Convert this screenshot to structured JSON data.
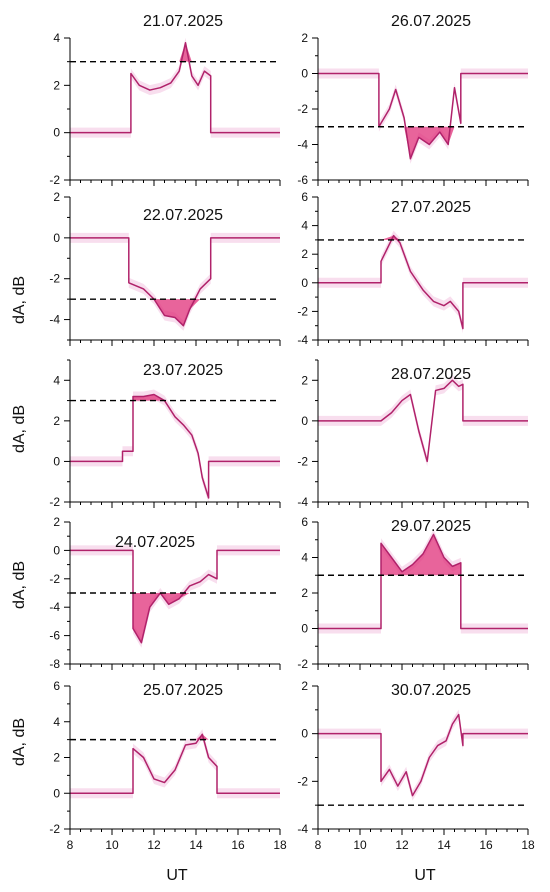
{
  "figure": {
    "ylabel": "dA, dB",
    "xlabel": "UT",
    "x_ticks": [
      "8",
      "10",
      "12",
      "14",
      "16",
      "18"
    ]
  },
  "colors": {
    "series": "#b0226a",
    "fill": "#e0307a",
    "envelope": "#f3c3e0",
    "threshold": "#000000"
  },
  "chart_data": [
    {
      "type": "line",
      "title": "21.07.2025",
      "xlim": [
        8,
        18
      ],
      "ylim": [
        -2,
        4
      ],
      "y_ticks": [
        "-2",
        "0",
        "2",
        "4"
      ],
      "threshold": 3,
      "fill_side": "above",
      "x": [
        8,
        10.9,
        10.9,
        11.3,
        11.8,
        12.3,
        12.8,
        13.2,
        13.5,
        13.8,
        14.1,
        14.4,
        14.7,
        14.7,
        18
      ],
      "y": [
        0,
        0,
        2.5,
        2.0,
        1.8,
        1.9,
        2.1,
        2.6,
        3.8,
        2.4,
        2.0,
        2.6,
        2.4,
        0,
        0
      ]
    },
    {
      "type": "line",
      "title": "26.07.2025",
      "xlim": [
        8,
        18
      ],
      "ylim": [
        -6,
        2
      ],
      "y_ticks": [
        "-6",
        "-4",
        "-2",
        "0",
        "2"
      ],
      "threshold": -3,
      "fill_side": "below",
      "x": [
        8,
        10.9,
        10.9,
        11.4,
        11.7,
        12.1,
        12.4,
        12.8,
        13.3,
        13.8,
        14.2,
        14.5,
        14.8,
        14.8,
        18
      ],
      "y": [
        0,
        0,
        -3.0,
        -2.0,
        -0.9,
        -2.5,
        -4.8,
        -3.6,
        -4.0,
        -3.3,
        -4.0,
        -0.8,
        -2.8,
        0,
        0
      ]
    },
    {
      "type": "line",
      "title": "22.07.2025",
      "xlim": [
        8,
        18
      ],
      "ylim": [
        -5,
        2
      ],
      "y_ticks": [
        "-4",
        "-2",
        "0",
        "2"
      ],
      "threshold": -3,
      "fill_side": "below",
      "x": [
        8,
        10.8,
        10.8,
        11.5,
        12.0,
        12.5,
        13.0,
        13.4,
        13.7,
        14.2,
        14.7,
        14.7,
        18
      ],
      "y": [
        0,
        0,
        -2.2,
        -2.5,
        -3.0,
        -3.8,
        -3.9,
        -4.3,
        -3.5,
        -2.5,
        -2.0,
        0,
        0
      ]
    },
    {
      "type": "line",
      "title": "27.07.2025",
      "xlim": [
        8,
        18
      ],
      "ylim": [
        -4,
        6
      ],
      "y_ticks": [
        "-4",
        "-2",
        "0",
        "2",
        "4",
        "6"
      ],
      "threshold": 3,
      "fill_side": "above",
      "x": [
        8,
        11.0,
        11.0,
        11.6,
        11.9,
        12.4,
        13.0,
        13.5,
        14.0,
        14.3,
        14.7,
        14.9,
        14.9,
        18
      ],
      "y": [
        0,
        0,
        1.5,
        3.3,
        2.8,
        0.8,
        -0.5,
        -1.3,
        -1.6,
        -1.3,
        -2.0,
        -3.2,
        0,
        0
      ]
    },
    {
      "type": "line",
      "title": "23.07.2025",
      "xlim": [
        8,
        18
      ],
      "ylim": [
        -2,
        5
      ],
      "y_ticks": [
        "-2",
        "0",
        "2",
        "4"
      ],
      "threshold": 3,
      "fill_side": "above",
      "x": [
        8,
        10.5,
        10.5,
        11.0,
        11.0,
        11.5,
        12.0,
        12.5,
        13.0,
        13.4,
        13.8,
        14.1,
        14.3,
        14.6,
        14.6,
        18
      ],
      "y": [
        0,
        0,
        0.5,
        0.5,
        3.2,
        3.2,
        3.3,
        3.0,
        2.2,
        1.8,
        1.3,
        0.4,
        -0.8,
        -1.8,
        0,
        0
      ]
    },
    {
      "type": "line",
      "title": "28.07.2025",
      "xlim": [
        8,
        18
      ],
      "ylim": [
        -4,
        3
      ],
      "y_ticks": [
        "-4",
        "-2",
        "0",
        "2"
      ],
      "threshold": null,
      "fill_side": "none",
      "x": [
        8,
        11.0,
        11.5,
        12.0,
        12.4,
        12.8,
        13.2,
        13.6,
        14.0,
        14.4,
        14.7,
        14.9,
        14.9,
        18
      ],
      "y": [
        0,
        0,
        0.4,
        1.0,
        1.3,
        -0.5,
        -2.0,
        1.5,
        1.6,
        2.0,
        1.7,
        1.8,
        0,
        0
      ]
    },
    {
      "type": "line",
      "title": "24.07.2025",
      "xlim": [
        8,
        18
      ],
      "ylim": [
        -8,
        2
      ],
      "y_ticks": [
        "-8",
        "-6",
        "-4",
        "-2",
        "0",
        "2"
      ],
      "threshold": -3,
      "fill_side": "below",
      "x": [
        8,
        11.0,
        11.0,
        11.4,
        11.8,
        12.3,
        12.7,
        13.2,
        13.7,
        14.2,
        14.6,
        15.0,
        15.0,
        18
      ],
      "y": [
        0,
        0,
        -5.5,
        -6.5,
        -4.0,
        -3.0,
        -3.8,
        -3.4,
        -2.5,
        -2.2,
        -1.7,
        -2.0,
        0,
        0
      ]
    },
    {
      "type": "line",
      "title": "29.07.2025",
      "xlim": [
        8,
        18
      ],
      "ylim": [
        -2,
        6
      ],
      "y_ticks": [
        "-2",
        "0",
        "2",
        "4",
        "6"
      ],
      "threshold": 3,
      "fill_side": "above",
      "x": [
        8,
        11.0,
        11.0,
        11.5,
        12.0,
        12.5,
        13.0,
        13.5,
        14.0,
        14.4,
        14.8,
        14.8,
        18
      ],
      "y": [
        0,
        0,
        4.8,
        4.0,
        3.2,
        3.6,
        4.2,
        5.3,
        4.0,
        3.5,
        3.7,
        0,
        0
      ]
    },
    {
      "type": "line",
      "title": "25.07.2025",
      "xlim": [
        8,
        18
      ],
      "ylim": [
        -2,
        6
      ],
      "y_ticks": [
        "-2",
        "0",
        "2",
        "4",
        "6"
      ],
      "threshold": 3,
      "fill_side": "above",
      "x": [
        8,
        11.0,
        11.0,
        11.5,
        12.0,
        12.5,
        13.0,
        13.5,
        14.0,
        14.3,
        14.6,
        15.0,
        15.0,
        18
      ],
      "y": [
        0,
        0,
        2.5,
        2.0,
        0.8,
        0.6,
        1.3,
        2.7,
        2.8,
        3.3,
        2.0,
        1.5,
        0,
        0
      ]
    },
    {
      "type": "line",
      "title": "30.07.2025",
      "xlim": [
        8,
        18
      ],
      "ylim": [
        -4,
        2
      ],
      "y_ticks": [
        "-4",
        "-2",
        "0",
        "2"
      ],
      "threshold": -3,
      "fill_side": "none",
      "x": [
        8,
        11.0,
        11.0,
        11.4,
        11.8,
        12.2,
        12.5,
        12.9,
        13.3,
        13.7,
        14.1,
        14.4,
        14.7,
        14.9,
        14.9,
        18
      ],
      "y": [
        0,
        0,
        -2.0,
        -1.5,
        -2.2,
        -1.6,
        -2.6,
        -2.0,
        -1.0,
        -0.5,
        -0.3,
        0.4,
        0.8,
        -0.5,
        0,
        0
      ]
    }
  ]
}
